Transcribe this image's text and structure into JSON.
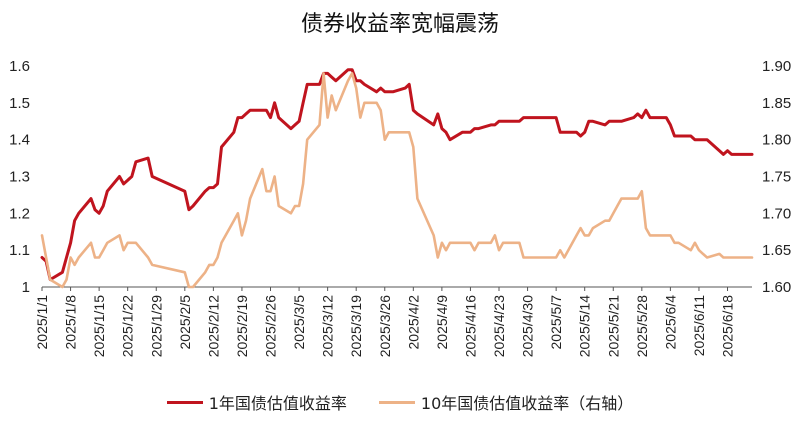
{
  "chart_data": {
    "type": "line",
    "title": "债券收益率宽幅震荡",
    "left_axis": {
      "min": 1.0,
      "max": 1.6,
      "ticks": [
        "1",
        "1.1",
        "1.2",
        "1.3",
        "1.4",
        "1.5",
        "1.6"
      ]
    },
    "right_axis": {
      "min": 1.6,
      "max": 1.9,
      "ticks": [
        "1.60",
        "1.65",
        "1.70",
        "1.75",
        "1.80",
        "1.85",
        "1.90"
      ]
    },
    "x_range": [
      "2025-01-01",
      "2025-06-24"
    ],
    "x_ticks": [
      "2025/1/1",
      "2025/1/8",
      "2025/1/15",
      "2025/1/22",
      "2025/1/29",
      "2025/2/5",
      "2025/2/12",
      "2025/2/19",
      "2025/2/26",
      "2025/3/5",
      "2025/3/12",
      "2025/3/19",
      "2025/3/26",
      "2025/4/2",
      "2025/4/9",
      "2025/4/16",
      "2025/4/23",
      "2025/4/30",
      "2025/5/7",
      "2025/5/14",
      "2025/5/21",
      "2025/5/28",
      "2025/6/4",
      "2025/6/11",
      "2025/6/18"
    ],
    "legend_position": "bottom",
    "grid": false,
    "series": [
      {
        "name": "1年国债估值收益率",
        "axis": "left",
        "color": "#C0141E",
        "points": [
          [
            "2025-01-01",
            1.08
          ],
          [
            "2025-01-02",
            1.07
          ],
          [
            "2025-01-03",
            1.02
          ],
          [
            "2025-01-06",
            1.04
          ],
          [
            "2025-01-07",
            1.08
          ],
          [
            "2025-01-08",
            1.12
          ],
          [
            "2025-01-09",
            1.18
          ],
          [
            "2025-01-10",
            1.2
          ],
          [
            "2025-01-13",
            1.24
          ],
          [
            "2025-01-14",
            1.21
          ],
          [
            "2025-01-15",
            1.2
          ],
          [
            "2025-01-16",
            1.22
          ],
          [
            "2025-01-17",
            1.26
          ],
          [
            "2025-01-20",
            1.3
          ],
          [
            "2025-01-21",
            1.28
          ],
          [
            "2025-01-22",
            1.29
          ],
          [
            "2025-01-23",
            1.3
          ],
          [
            "2025-01-24",
            1.34
          ],
          [
            "2025-01-27",
            1.35
          ],
          [
            "2025-01-28",
            1.3
          ],
          [
            "2025-02-05",
            1.26
          ],
          [
            "2025-02-06",
            1.21
          ],
          [
            "2025-02-07",
            1.22
          ],
          [
            "2025-02-10",
            1.26
          ],
          [
            "2025-02-11",
            1.27
          ],
          [
            "2025-02-12",
            1.27
          ],
          [
            "2025-02-13",
            1.28
          ],
          [
            "2025-02-14",
            1.38
          ],
          [
            "2025-02-17",
            1.42
          ],
          [
            "2025-02-18",
            1.46
          ],
          [
            "2025-02-19",
            1.46
          ],
          [
            "2025-02-20",
            1.47
          ],
          [
            "2025-02-21",
            1.48
          ],
          [
            "2025-02-24",
            1.48
          ],
          [
            "2025-02-25",
            1.48
          ],
          [
            "2025-02-26",
            1.46
          ],
          [
            "2025-02-27",
            1.5
          ],
          [
            "2025-02-28",
            1.46
          ],
          [
            "2025-03-03",
            1.43
          ],
          [
            "2025-03-04",
            1.44
          ],
          [
            "2025-03-05",
            1.45
          ],
          [
            "2025-03-06",
            1.5
          ],
          [
            "2025-03-07",
            1.55
          ],
          [
            "2025-03-10",
            1.55
          ],
          [
            "2025-03-11",
            1.58
          ],
          [
            "2025-03-12",
            1.58
          ],
          [
            "2025-03-13",
            1.57
          ],
          [
            "2025-03-14",
            1.56
          ],
          [
            "2025-03-17",
            1.59
          ],
          [
            "2025-03-18",
            1.59
          ],
          [
            "2025-03-19",
            1.56
          ],
          [
            "2025-03-20",
            1.56
          ],
          [
            "2025-03-21",
            1.55
          ],
          [
            "2025-03-24",
            1.53
          ],
          [
            "2025-03-25",
            1.54
          ],
          [
            "2025-03-26",
            1.53
          ],
          [
            "2025-03-27",
            1.53
          ],
          [
            "2025-03-28",
            1.53
          ],
          [
            "2025-03-31",
            1.54
          ],
          [
            "2025-04-01",
            1.55
          ],
          [
            "2025-04-02",
            1.48
          ],
          [
            "2025-04-03",
            1.47
          ],
          [
            "2025-04-07",
            1.44
          ],
          [
            "2025-04-08",
            1.47
          ],
          [
            "2025-04-09",
            1.43
          ],
          [
            "2025-04-10",
            1.42
          ],
          [
            "2025-04-11",
            1.4
          ],
          [
            "2025-04-14",
            1.42
          ],
          [
            "2025-04-15",
            1.42
          ],
          [
            "2025-04-16",
            1.42
          ],
          [
            "2025-04-17",
            1.43
          ],
          [
            "2025-04-18",
            1.43
          ],
          [
            "2025-04-21",
            1.44
          ],
          [
            "2025-04-22",
            1.44
          ],
          [
            "2025-04-23",
            1.45
          ],
          [
            "2025-04-24",
            1.45
          ],
          [
            "2025-04-25",
            1.45
          ],
          [
            "2025-04-28",
            1.45
          ],
          [
            "2025-04-29",
            1.46
          ],
          [
            "2025-04-30",
            1.46
          ],
          [
            "2025-05-06",
            1.46
          ],
          [
            "2025-05-07",
            1.46
          ],
          [
            "2025-05-08",
            1.42
          ],
          [
            "2025-05-09",
            1.42
          ],
          [
            "2025-05-12",
            1.42
          ],
          [
            "2025-05-13",
            1.41
          ],
          [
            "2025-05-14",
            1.42
          ],
          [
            "2025-05-15",
            1.45
          ],
          [
            "2025-05-16",
            1.45
          ],
          [
            "2025-05-19",
            1.44
          ],
          [
            "2025-05-20",
            1.45
          ],
          [
            "2025-05-21",
            1.45
          ],
          [
            "2025-05-22",
            1.45
          ],
          [
            "2025-05-23",
            1.45
          ],
          [
            "2025-05-26",
            1.46
          ],
          [
            "2025-05-27",
            1.47
          ],
          [
            "2025-05-28",
            1.46
          ],
          [
            "2025-05-29",
            1.48
          ],
          [
            "2025-05-30",
            1.46
          ],
          [
            "2025-06-03",
            1.46
          ],
          [
            "2025-06-04",
            1.44
          ],
          [
            "2025-06-05",
            1.41
          ],
          [
            "2025-06-06",
            1.41
          ],
          [
            "2025-06-09",
            1.41
          ],
          [
            "2025-06-10",
            1.4
          ],
          [
            "2025-06-11",
            1.4
          ],
          [
            "2025-06-12",
            1.4
          ],
          [
            "2025-06-13",
            1.4
          ],
          [
            "2025-06-16",
            1.37
          ],
          [
            "2025-06-17",
            1.36
          ],
          [
            "2025-06-18",
            1.37
          ],
          [
            "2025-06-19",
            1.36
          ],
          [
            "2025-06-20",
            1.36
          ],
          [
            "2025-06-23",
            1.36
          ],
          [
            "2025-06-24",
            1.36
          ]
        ]
      },
      {
        "name": "10年国债估值收益率（右轴）",
        "axis": "right",
        "color": "#EDB287",
        "points": [
          [
            "2025-01-01",
            1.67
          ],
          [
            "2025-01-02",
            1.64
          ],
          [
            "2025-01-03",
            1.61
          ],
          [
            "2025-01-06",
            1.6
          ],
          [
            "2025-01-07",
            1.61
          ],
          [
            "2025-01-08",
            1.64
          ],
          [
            "2025-01-09",
            1.63
          ],
          [
            "2025-01-10",
            1.64
          ],
          [
            "2025-01-13",
            1.66
          ],
          [
            "2025-01-14",
            1.64
          ],
          [
            "2025-01-15",
            1.64
          ],
          [
            "2025-01-16",
            1.65
          ],
          [
            "2025-01-17",
            1.66
          ],
          [
            "2025-01-20",
            1.67
          ],
          [
            "2025-01-21",
            1.65
          ],
          [
            "2025-01-22",
            1.66
          ],
          [
            "2025-01-23",
            1.66
          ],
          [
            "2025-01-24",
            1.66
          ],
          [
            "2025-01-27",
            1.64
          ],
          [
            "2025-01-28",
            1.63
          ],
          [
            "2025-02-05",
            1.62
          ],
          [
            "2025-02-06",
            1.6
          ],
          [
            "2025-02-07",
            1.6
          ],
          [
            "2025-02-10",
            1.62
          ],
          [
            "2025-02-11",
            1.63
          ],
          [
            "2025-02-12",
            1.63
          ],
          [
            "2025-02-13",
            1.64
          ],
          [
            "2025-02-14",
            1.66
          ],
          [
            "2025-02-17",
            1.69
          ],
          [
            "2025-02-18",
            1.7
          ],
          [
            "2025-02-19",
            1.67
          ],
          [
            "2025-02-20",
            1.69
          ],
          [
            "2025-02-21",
            1.72
          ],
          [
            "2025-02-24",
            1.76
          ],
          [
            "2025-02-25",
            1.73
          ],
          [
            "2025-02-26",
            1.73
          ],
          [
            "2025-02-27",
            1.75
          ],
          [
            "2025-02-28",
            1.71
          ],
          [
            "2025-03-03",
            1.7
          ],
          [
            "2025-03-04",
            1.71
          ],
          [
            "2025-03-05",
            1.71
          ],
          [
            "2025-03-06",
            1.74
          ],
          [
            "2025-03-07",
            1.8
          ],
          [
            "2025-03-10",
            1.82
          ],
          [
            "2025-03-11",
            1.89
          ],
          [
            "2025-03-12",
            1.83
          ],
          [
            "2025-03-13",
            1.86
          ],
          [
            "2025-03-14",
            1.84
          ],
          [
            "2025-03-17",
            1.88
          ],
          [
            "2025-03-18",
            1.89
          ],
          [
            "2025-03-19",
            1.87
          ],
          [
            "2025-03-20",
            1.83
          ],
          [
            "2025-03-21",
            1.85
          ],
          [
            "2025-03-24",
            1.85
          ],
          [
            "2025-03-25",
            1.84
          ],
          [
            "2025-03-26",
            1.8
          ],
          [
            "2025-03-27",
            1.81
          ],
          [
            "2025-03-28",
            1.81
          ],
          [
            "2025-03-31",
            1.81
          ],
          [
            "2025-04-01",
            1.81
          ],
          [
            "2025-04-02",
            1.79
          ],
          [
            "2025-04-03",
            1.72
          ],
          [
            "2025-04-07",
            1.67
          ],
          [
            "2025-04-08",
            1.64
          ],
          [
            "2025-04-09",
            1.66
          ],
          [
            "2025-04-10",
            1.65
          ],
          [
            "2025-04-11",
            1.66
          ],
          [
            "2025-04-14",
            1.66
          ],
          [
            "2025-04-15",
            1.66
          ],
          [
            "2025-04-16",
            1.66
          ],
          [
            "2025-04-17",
            1.65
          ],
          [
            "2025-04-18",
            1.66
          ],
          [
            "2025-04-21",
            1.66
          ],
          [
            "2025-04-22",
            1.67
          ],
          [
            "2025-04-23",
            1.65
          ],
          [
            "2025-04-24",
            1.66
          ],
          [
            "2025-04-25",
            1.66
          ],
          [
            "2025-04-28",
            1.66
          ],
          [
            "2025-04-29",
            1.64
          ],
          [
            "2025-04-30",
            1.64
          ],
          [
            "2025-05-06",
            1.64
          ],
          [
            "2025-05-07",
            1.64
          ],
          [
            "2025-05-08",
            1.65
          ],
          [
            "2025-05-09",
            1.64
          ],
          [
            "2025-05-12",
            1.67
          ],
          [
            "2025-05-13",
            1.68
          ],
          [
            "2025-05-14",
            1.67
          ],
          [
            "2025-05-15",
            1.67
          ],
          [
            "2025-05-16",
            1.68
          ],
          [
            "2025-05-19",
            1.69
          ],
          [
            "2025-05-20",
            1.69
          ],
          [
            "2025-05-21",
            1.7
          ],
          [
            "2025-05-22",
            1.71
          ],
          [
            "2025-05-23",
            1.72
          ],
          [
            "2025-05-26",
            1.72
          ],
          [
            "2025-05-27",
            1.72
          ],
          [
            "2025-05-28",
            1.73
          ],
          [
            "2025-05-29",
            1.68
          ],
          [
            "2025-05-30",
            1.67
          ],
          [
            "2025-06-03",
            1.67
          ],
          [
            "2025-06-04",
            1.67
          ],
          [
            "2025-06-05",
            1.66
          ],
          [
            "2025-06-06",
            1.66
          ],
          [
            "2025-06-09",
            1.65
          ],
          [
            "2025-06-10",
            1.66
          ],
          [
            "2025-06-11",
            1.65
          ],
          [
            "2025-06-12",
            1.645
          ],
          [
            "2025-06-13",
            1.64
          ],
          [
            "2025-06-16",
            1.645
          ],
          [
            "2025-06-17",
            1.64
          ],
          [
            "2025-06-18",
            1.64
          ],
          [
            "2025-06-19",
            1.64
          ],
          [
            "2025-06-20",
            1.64
          ],
          [
            "2025-06-23",
            1.64
          ],
          [
            "2025-06-24",
            1.64
          ]
        ]
      }
    ]
  }
}
